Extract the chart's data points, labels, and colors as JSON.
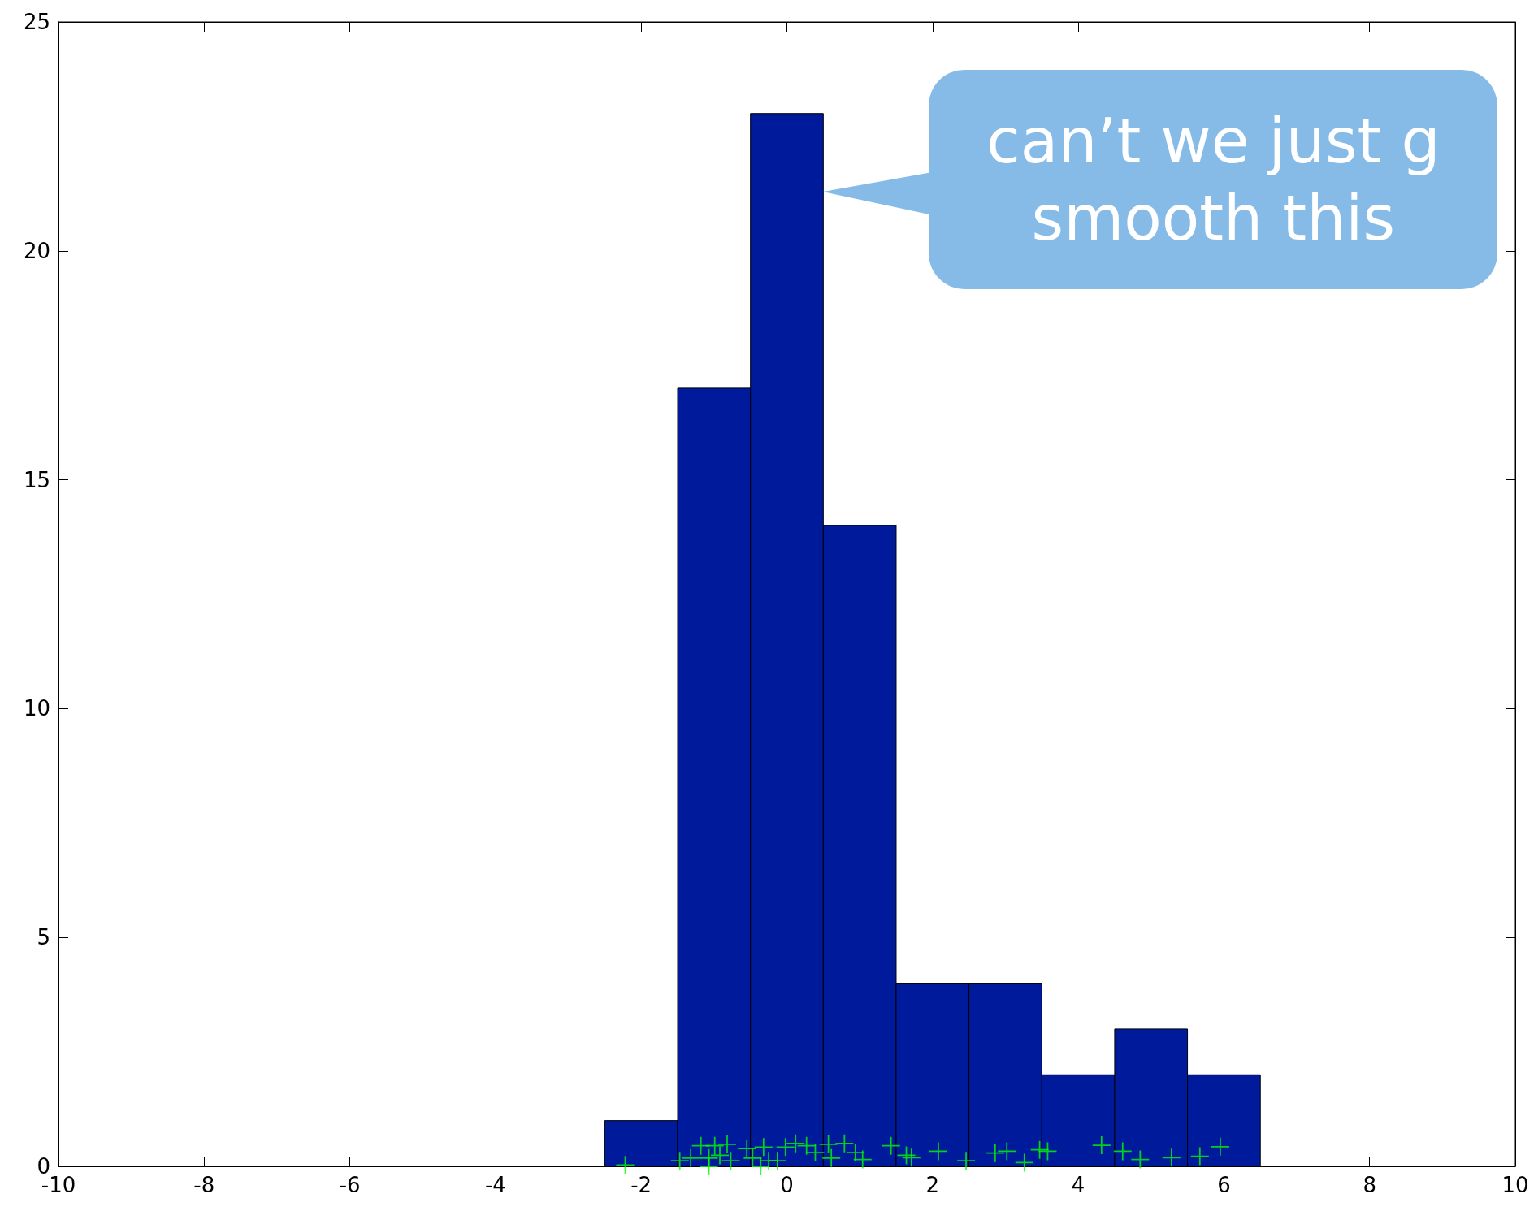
{
  "chart_data": {
    "type": "histogram",
    "bins": [
      -2.5,
      -1.5,
      -0.5,
      0.5,
      1.5,
      2.5,
      3.5,
      4.5,
      5.5,
      6.5
    ],
    "values": [
      1,
      17,
      23,
      14,
      4,
      4,
      2,
      3,
      2
    ],
    "color": "#001a9c",
    "series": [
      {
        "type": "scatter",
        "color": "#00ff00",
        "marker": "cross",
        "x": [
          -2.22,
          -1.47,
          -1.32,
          -1.18,
          -1.07,
          -1.07,
          -0.99,
          -0.92,
          -0.82,
          -0.77,
          -0.55,
          -0.47,
          -0.36,
          -0.32,
          -0.25,
          -0.13,
          -0.02,
          0.12,
          0.27,
          0.39,
          0.57,
          0.61,
          0.79,
          0.94,
          1.04,
          1.43,
          1.64,
          1.71,
          2.08,
          2.46,
          2.86,
          3.02,
          3.26,
          3.47,
          3.58,
          4.32,
          4.61,
          4.85,
          5.28,
          5.67,
          5.95
        ],
        "values": [
          0.03,
          0.12,
          0.18,
          0.45,
          0.18,
          0,
          0.45,
          0.24,
          0.48,
          0.12,
          0.39,
          0.18,
          0,
          0.42,
          0.12,
          0.12,
          0.42,
          0.5,
          0.45,
          0.3,
          0.48,
          0.18,
          0.5,
          0.3,
          0.15,
          0.45,
          0.24,
          0.19,
          0.33,
          0.12,
          0.29,
          0.33,
          0.08,
          0.36,
          0.33,
          0.46,
          0.33,
          0.15,
          0.19,
          0.22,
          0.43
        ]
      }
    ],
    "xlim": [
      -10,
      10
    ],
    "xticks": [
      -10,
      -8,
      -6,
      -4,
      -2,
      0,
      2,
      4,
      6,
      8,
      10
    ],
    "ylim": [
      0,
      25
    ],
    "yticks": [
      0,
      5,
      10,
      15,
      20,
      25
    ],
    "grid": false,
    "annotations": [
      {
        "text": "can’t we just g\nsmooth this",
        "x": 0.5,
        "y": 21.3
      }
    ]
  }
}
